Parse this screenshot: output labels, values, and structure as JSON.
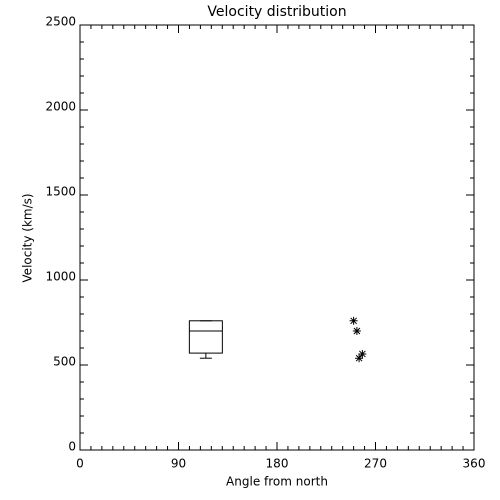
{
  "chart_data": {
    "type": "box",
    "title": "Velocity distribution",
    "x_label": "Angle from north",
    "y_label": "Velocity (km/s)",
    "xlim": [
      0,
      360
    ],
    "xticks": [
      0,
      90,
      180,
      270,
      360
    ],
    "xminorticks": [
      10,
      20,
      30,
      40,
      50,
      60,
      70,
      80,
      100,
      110,
      120,
      130,
      140,
      150,
      160,
      170,
      190,
      200,
      210,
      220,
      230,
      240,
      250,
      260,
      280,
      290,
      300,
      310,
      320,
      330,
      340,
      350
    ],
    "ylim": [
      0,
      2500
    ],
    "yticks": [
      0,
      500,
      1000,
      1500,
      2000,
      2500
    ],
    "yminorticks": [
      100,
      200,
      300,
      400,
      600,
      700,
      800,
      900,
      1100,
      1200,
      1300,
      1400,
      1600,
      1700,
      1800,
      1900,
      2100,
      2200,
      2300,
      2400
    ],
    "color": "#000000",
    "boxes": [
      {
        "x": 115,
        "min": 540,
        "q1": 570,
        "median": 700,
        "q3": 760,
        "max": 760
      }
    ],
    "scatter": {
      "x": [
        250,
        253,
        255,
        258
      ],
      "values": [
        760,
        700,
        540,
        565
      ]
    }
  }
}
